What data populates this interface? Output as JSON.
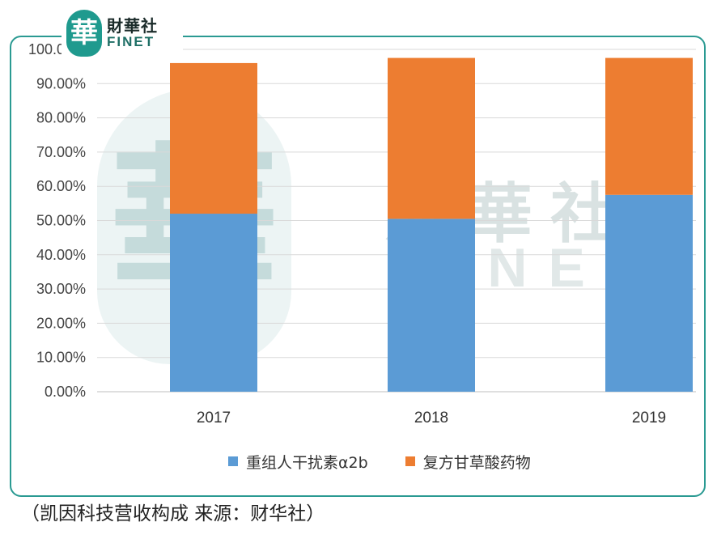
{
  "logo": {
    "seal_char": "華",
    "name_cn": "財華社",
    "name_en": "FINET"
  },
  "watermark": {
    "seal_char": "華",
    "name_cn": "財華社",
    "name_en": "FINET"
  },
  "colors": {
    "series1": "#5b9bd5",
    "series2": "#ed7d31",
    "frame": "#2a9a92",
    "grid": "#d9d9d9"
  },
  "chart_data": {
    "type": "bar",
    "stacked": true,
    "categories": [
      "2017",
      "2018",
      "2019"
    ],
    "series": [
      {
        "name": "重组人干扰素α2b",
        "values": [
          52.0,
          50.5,
          57.5
        ]
      },
      {
        "name": "复方甘草酸药物",
        "values": [
          44.0,
          47.0,
          40.0
        ]
      }
    ],
    "yticks": [
      "0.00%",
      "10.00%",
      "20.00%",
      "30.00%",
      "40.00%",
      "50.00%",
      "60.00%",
      "70.00%",
      "80.00%",
      "90.00%",
      "100.00%"
    ],
    "ylim": [
      0,
      100
    ],
    "grid": true,
    "legend_position": "bottom"
  },
  "caption": "（凯因科技营收构成   来源：财华社）"
}
